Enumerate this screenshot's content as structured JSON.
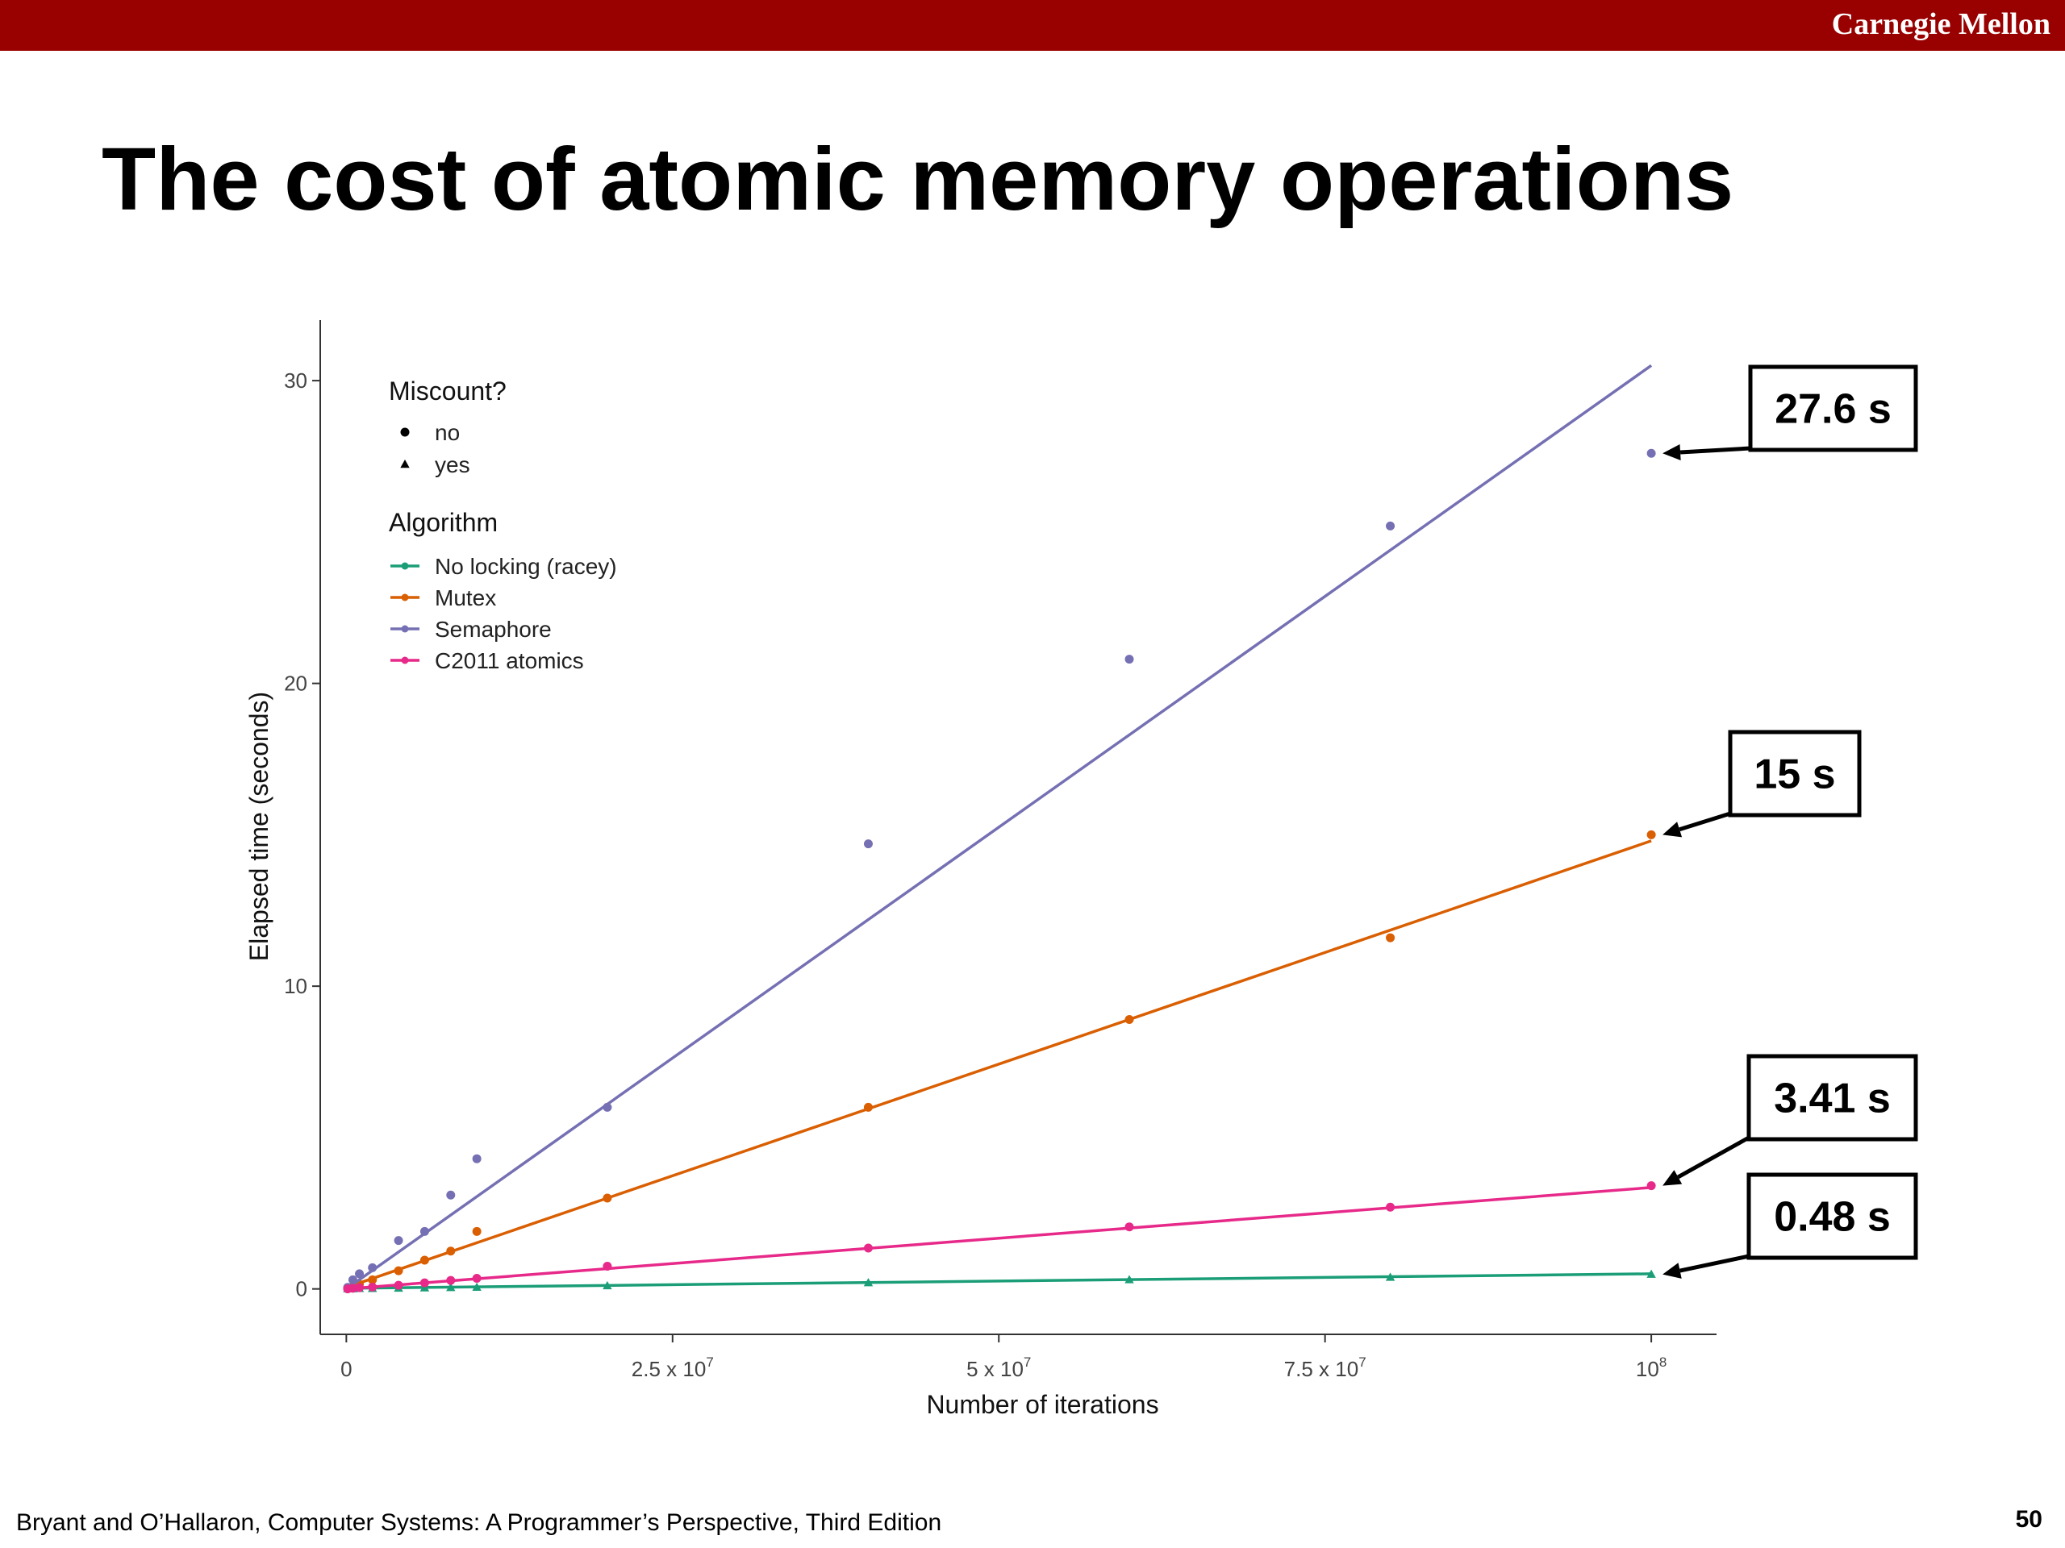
{
  "header": {
    "brand": "Carnegie Mellon",
    "accent_color": "#990000"
  },
  "slide": {
    "title": "The cost of atomic memory operations",
    "footer": "Bryant and O’Hallaron, Computer Systems: A Programmer’s Perspective, Third Edition",
    "page_number": "50"
  },
  "chart_data": {
    "type": "scatter",
    "xlabel": "Number of iterations",
    "ylabel": "Elapsed time (seconds)",
    "xlim": [
      -2000000,
      105000000
    ],
    "ylim": [
      -1.5,
      32
    ],
    "x_ticks": [
      {
        "value": 0,
        "label": "0"
      },
      {
        "value": 25000000,
        "label": "2.5 x 10^7"
      },
      {
        "value": 50000000,
        "label": "5 x 10^7"
      },
      {
        "value": 75000000,
        "label": "7.5 x 10^7"
      },
      {
        "value": 100000000,
        "label": "10^8"
      }
    ],
    "y_ticks": [
      {
        "value": 0,
        "label": "0"
      },
      {
        "value": 10,
        "label": "10"
      },
      {
        "value": 20,
        "label": "20"
      },
      {
        "value": 30,
        "label": "30"
      }
    ],
    "grid": false,
    "legend": {
      "position": "top-left",
      "shape_title": "Miscount?",
      "shapes": [
        {
          "label": "no",
          "shape": "circle"
        },
        {
          "label": "yes",
          "shape": "triangle"
        }
      ],
      "color_title": "Algorithm"
    },
    "series": [
      {
        "name": "No locking (racey)",
        "color": "#1b9e77",
        "shape": "triangle",
        "x": [
          100000,
          500000,
          1000000,
          2000000,
          4000000,
          6000000,
          8000000,
          10000000,
          20000000,
          40000000,
          60000000,
          80000000,
          100000000
        ],
        "y": [
          0.0,
          0.0,
          0.01,
          0.01,
          0.02,
          0.03,
          0.04,
          0.05,
          0.1,
          0.2,
          0.3,
          0.38,
          0.48
        ],
        "fit": [
          0,
          0.02,
          100000000,
          0.5
        ]
      },
      {
        "name": "Mutex",
        "color": "#d95f02",
        "shape": "circle",
        "x": [
          100000,
          500000,
          1000000,
          2000000,
          4000000,
          6000000,
          8000000,
          10000000,
          20000000,
          40000000,
          60000000,
          80000000,
          100000000
        ],
        "y": [
          0.02,
          0.08,
          0.15,
          0.3,
          0.6,
          0.95,
          1.25,
          1.9,
          3.0,
          6.0,
          8.9,
          11.6,
          15.0
        ],
        "fit": [
          0,
          0.05,
          100000000,
          14.8
        ]
      },
      {
        "name": "Semaphore",
        "color": "#7570b3",
        "shape": "circle",
        "x": [
          100000,
          500000,
          1000000,
          2000000,
          4000000,
          6000000,
          8000000,
          10000000,
          20000000,
          40000000,
          60000000,
          80000000,
          100000000
        ],
        "y": [
          0.05,
          0.3,
          0.5,
          0.7,
          1.6,
          1.9,
          3.1,
          4.3,
          6.0,
          14.7,
          20.8,
          25.2,
          27.6
        ],
        "fit": [
          0,
          0.0,
          100000000,
          30.5
        ]
      },
      {
        "name": "C2011 atomics",
        "color": "#e7298a",
        "shape": "circle",
        "x": [
          100000,
          500000,
          1000000,
          2000000,
          4000000,
          6000000,
          8000000,
          10000000,
          20000000,
          40000000,
          60000000,
          80000000,
          100000000
        ],
        "y": [
          0.0,
          0.02,
          0.04,
          0.06,
          0.12,
          0.2,
          0.28,
          0.35,
          0.75,
          1.35,
          2.05,
          2.7,
          3.41
        ],
        "fit": [
          0,
          0.0,
          100000000,
          3.35
        ]
      }
    ],
    "annotations": [
      {
        "label": "27.6 s",
        "x": 100000000,
        "y": 27.6
      },
      {
        "label": "15 s",
        "x": 100000000,
        "y": 15.0
      },
      {
        "label": "3.41 s",
        "x": 100000000,
        "y": 3.41
      },
      {
        "label": "0.48 s",
        "x": 100000000,
        "y": 0.48
      }
    ]
  }
}
